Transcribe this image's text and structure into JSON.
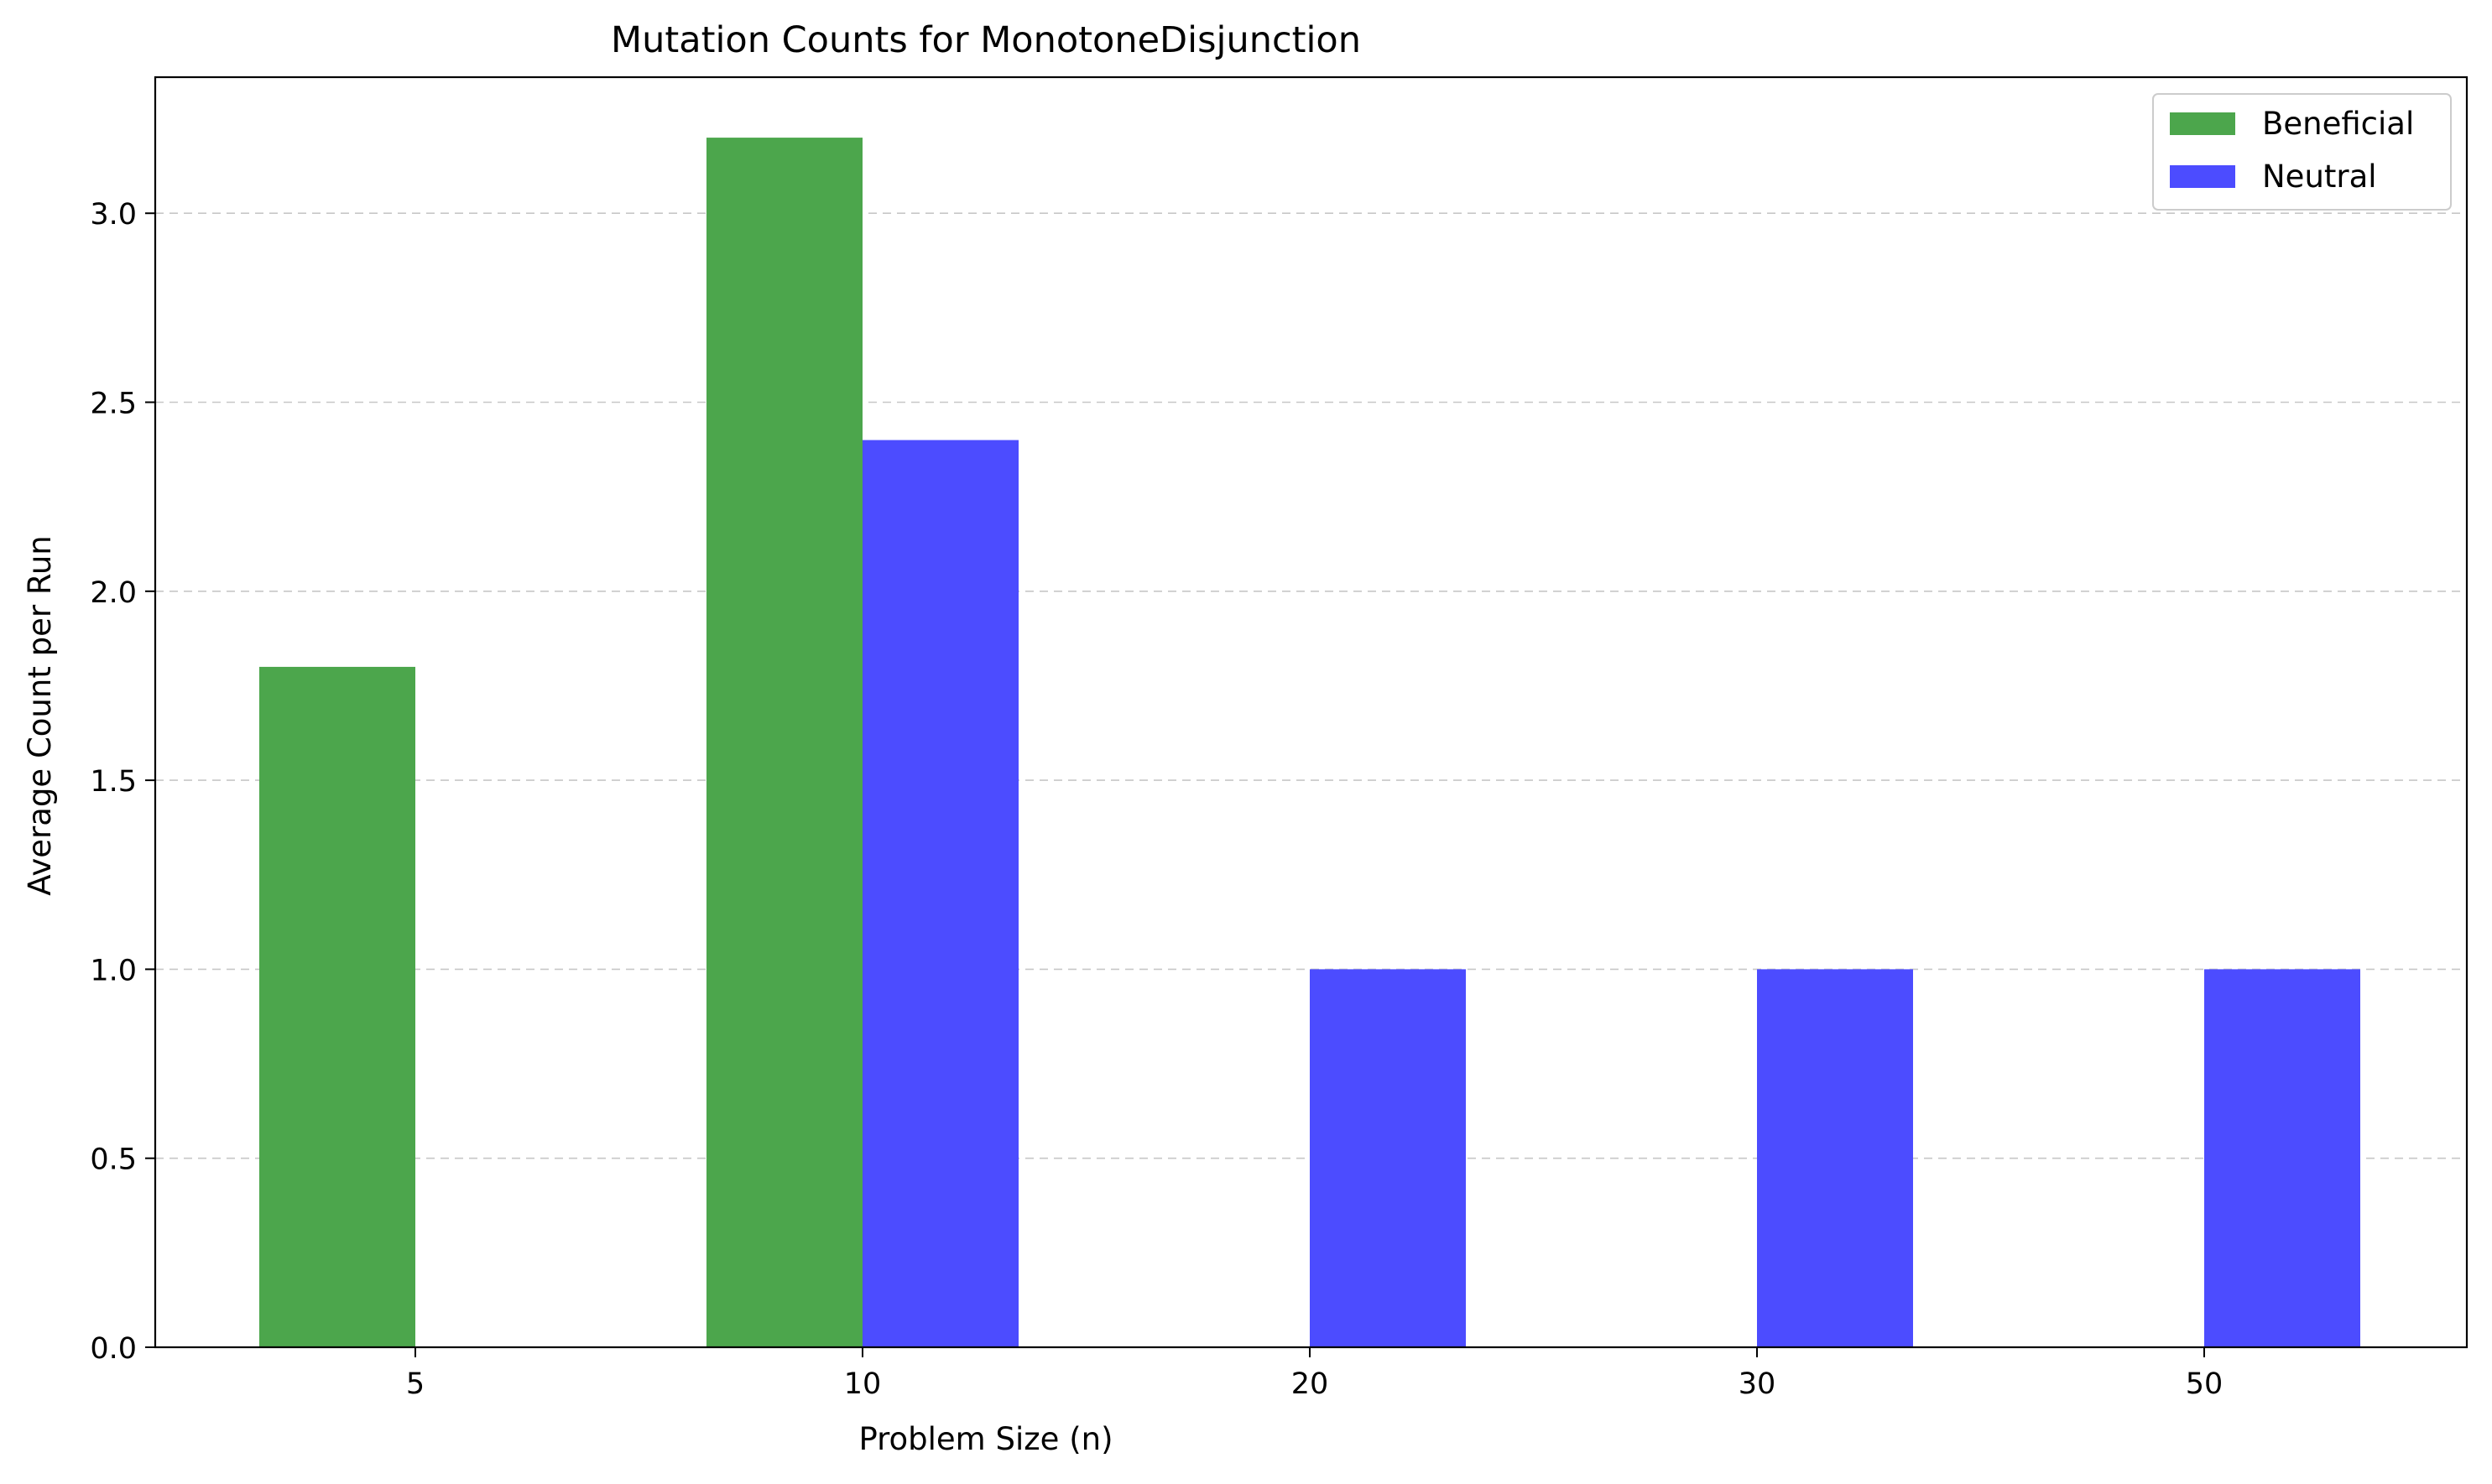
{
  "chart_data": {
    "type": "bar",
    "title": "Mutation Counts for MonotoneDisjunction",
    "xlabel": "Problem Size (n)",
    "ylabel": "Average Count per Run",
    "categories": [
      "5",
      "10",
      "20",
      "30",
      "50"
    ],
    "series": [
      {
        "name": "Beneficial",
        "color": "#4ca64c",
        "values": [
          1.8,
          3.2,
          0,
          0,
          0
        ]
      },
      {
        "name": "Neutral",
        "color": "#4c4cff",
        "values": [
          0,
          2.4,
          1.0,
          1.0,
          1.0
        ]
      }
    ],
    "ylim": [
      0,
      3.36
    ],
    "yticks": [
      0.0,
      0.5,
      1.0,
      1.5,
      2.0,
      2.5,
      3.0
    ],
    "ytick_labels": [
      "0.0",
      "0.5",
      "1.0",
      "1.5",
      "2.0",
      "2.5",
      "3.0"
    ],
    "grid": "y, dashed",
    "legend_position": "top-right"
  }
}
